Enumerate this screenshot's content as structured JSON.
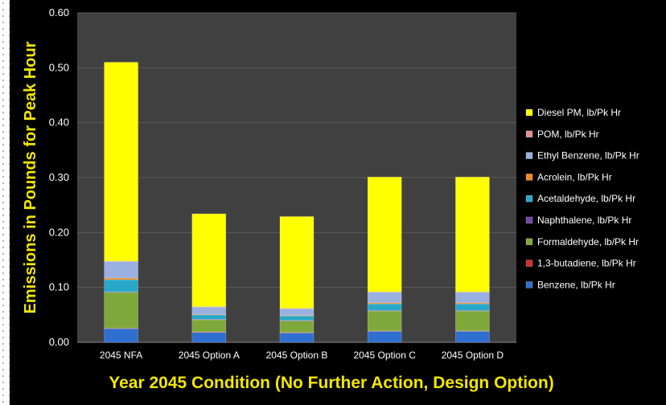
{
  "chart_data": {
    "type": "bar",
    "stacked": true,
    "title": "",
    "xlabel": "Year 2045 Condition (No Further Action, Design Option)",
    "ylabel": "Emissions in Pounds for Peak Hour",
    "ylim": [
      0,
      0.6
    ],
    "yticks": [
      "0.00",
      "0.10",
      "0.20",
      "0.30",
      "0.40",
      "0.50",
      "0.60"
    ],
    "grid": true,
    "legend_position": "right",
    "plot_background": "#404040",
    "categories": [
      "2045 NFA",
      "2045 Option A",
      "2045 Option B",
      "2045 Option C",
      "2045 Option D"
    ],
    "series": [
      {
        "name": "Benzene, lb/Pk Hr",
        "color": "#2f6fd0",
        "values": [
          0.025,
          0.018,
          0.017,
          0.02,
          0.02
        ]
      },
      {
        "name": "1,3-butadiene, lb/Pk Hr",
        "color": "#d03030",
        "values": [
          0.001,
          0.001,
          0.001,
          0.001,
          0.001
        ]
      },
      {
        "name": "Formaldehyde, lb/Pk Hr",
        "color": "#7fa83a",
        "values": [
          0.065,
          0.022,
          0.021,
          0.036,
          0.036
        ]
      },
      {
        "name": "Naphthalene, lb/Pk Hr",
        "color": "#7048a8",
        "values": [
          0.001,
          0.001,
          0.001,
          0.001,
          0.001
        ]
      },
      {
        "name": "Acetaldehyde, lb/Pk Hr",
        "color": "#28a8c8",
        "values": [
          0.022,
          0.008,
          0.008,
          0.012,
          0.012
        ]
      },
      {
        "name": "Acrolein, lb/Pk Hr",
        "color": "#f08a20",
        "values": [
          0.003,
          0.001,
          0.001,
          0.002,
          0.002
        ]
      },
      {
        "name": "Ethyl Benzene, lb/Pk Hr",
        "color": "#9ab0e0",
        "values": [
          0.03,
          0.013,
          0.012,
          0.019,
          0.019
        ]
      },
      {
        "name": "POM, lb/Pk Hr",
        "color": "#e09090",
        "values": [
          0.001,
          0.001,
          0.001,
          0.001,
          0.001
        ]
      },
      {
        "name": "Diesel PM, lb/Pk Hr",
        "color": "#ffff00",
        "values": [
          0.362,
          0.169,
          0.167,
          0.209,
          0.209
        ]
      }
    ]
  }
}
